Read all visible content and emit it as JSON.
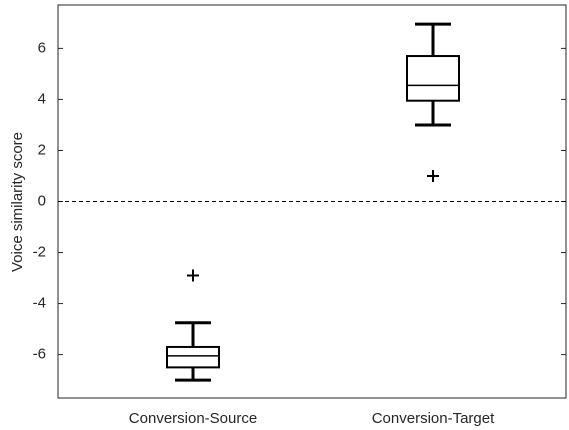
{
  "chart_data": {
    "type": "box",
    "y_label": "Voice similarity score",
    "categories": [
      "Conversion-Source",
      "Conversion-Target"
    ],
    "boxes": [
      {
        "whislo": -7.0,
        "q1": -6.5,
        "med": -6.05,
        "q3": -5.7,
        "whishi": -4.75,
        "fliers": [
          -2.9
        ]
      },
      {
        "whislo": 3.0,
        "q1": 3.95,
        "med": 4.55,
        "q3": 5.7,
        "whishi": 6.95,
        "fliers": [
          1.0
        ]
      }
    ],
    "color": "#000000",
    "reference_line": 0,
    "ylim": [
      -7.7,
      7.7
    ],
    "yticks": [
      -6,
      -4,
      -2,
      0,
      2,
      4,
      6
    ]
  }
}
